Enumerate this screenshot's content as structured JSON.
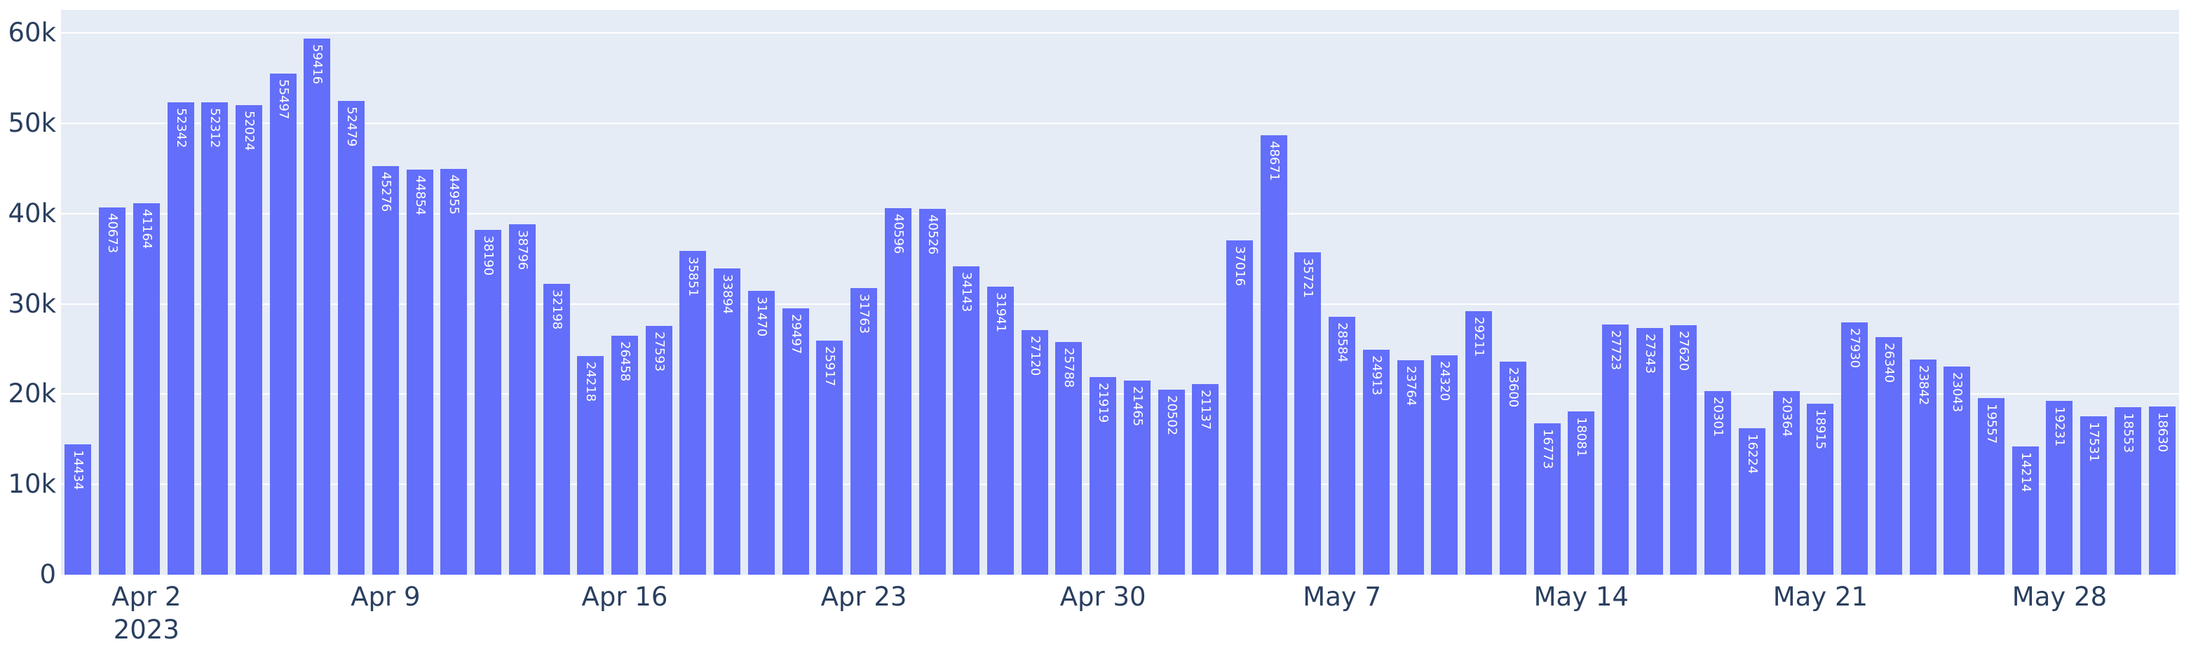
{
  "chart_data": {
    "type": "bar",
    "title": "",
    "xlabel": "",
    "ylabel": "",
    "values": [
      14434,
      40673,
      41164,
      52342,
      52312,
      52024,
      55497,
      59416,
      52479,
      45276,
      44854,
      44955,
      38190,
      38796,
      32198,
      24218,
      26458,
      27593,
      35851,
      33894,
      31470,
      29497,
      25917,
      31763,
      40596,
      40526,
      34143,
      31941,
      27120,
      25788,
      21919,
      21465,
      20502,
      21137,
      37016,
      48671,
      35721,
      28584,
      24913,
      23764,
      24320,
      29211,
      23600,
      16773,
      18081,
      27723,
      27343,
      27620,
      20301,
      16224,
      20364,
      18915,
      27930,
      26340,
      23842,
      23043,
      19557,
      14214,
      19231,
      17531,
      18553,
      18630
    ],
    "bar_value_labels_visible": true,
    "x_ticks": [
      {
        "label": "Apr 2",
        "year": "2023",
        "bar_index": 2
      },
      {
        "label": "Apr 9",
        "bar_index": 9
      },
      {
        "label": "Apr 16",
        "bar_index": 16
      },
      {
        "label": "Apr 23",
        "bar_index": 23
      },
      {
        "label": "Apr 30",
        "bar_index": 30
      },
      {
        "label": "May 7",
        "bar_index": 37
      },
      {
        "label": "May 14",
        "bar_index": 44
      },
      {
        "label": "May 21",
        "bar_index": 51
      },
      {
        "label": "May 28",
        "bar_index": 58
      }
    ],
    "y_ticks": [
      {
        "label": "0",
        "value": 0
      },
      {
        "label": "10k",
        "value": 10000
      },
      {
        "label": "20k",
        "value": 20000
      },
      {
        "label": "30k",
        "value": 30000
      },
      {
        "label": "40k",
        "value": 40000
      },
      {
        "label": "50k",
        "value": 50000
      },
      {
        "label": "60k",
        "value": 60000
      }
    ],
    "ylim": [
      0,
      62563
    ],
    "grid": true,
    "legend": "none",
    "colors": {
      "bar": "#636EFA",
      "plot_bg": "#E5ECF6",
      "paper_bg": "#FFFFFF",
      "grid": "#FFFFFF",
      "tick_text": "#2A3F5F",
      "bar_label_text": "#FFFFFF"
    }
  }
}
